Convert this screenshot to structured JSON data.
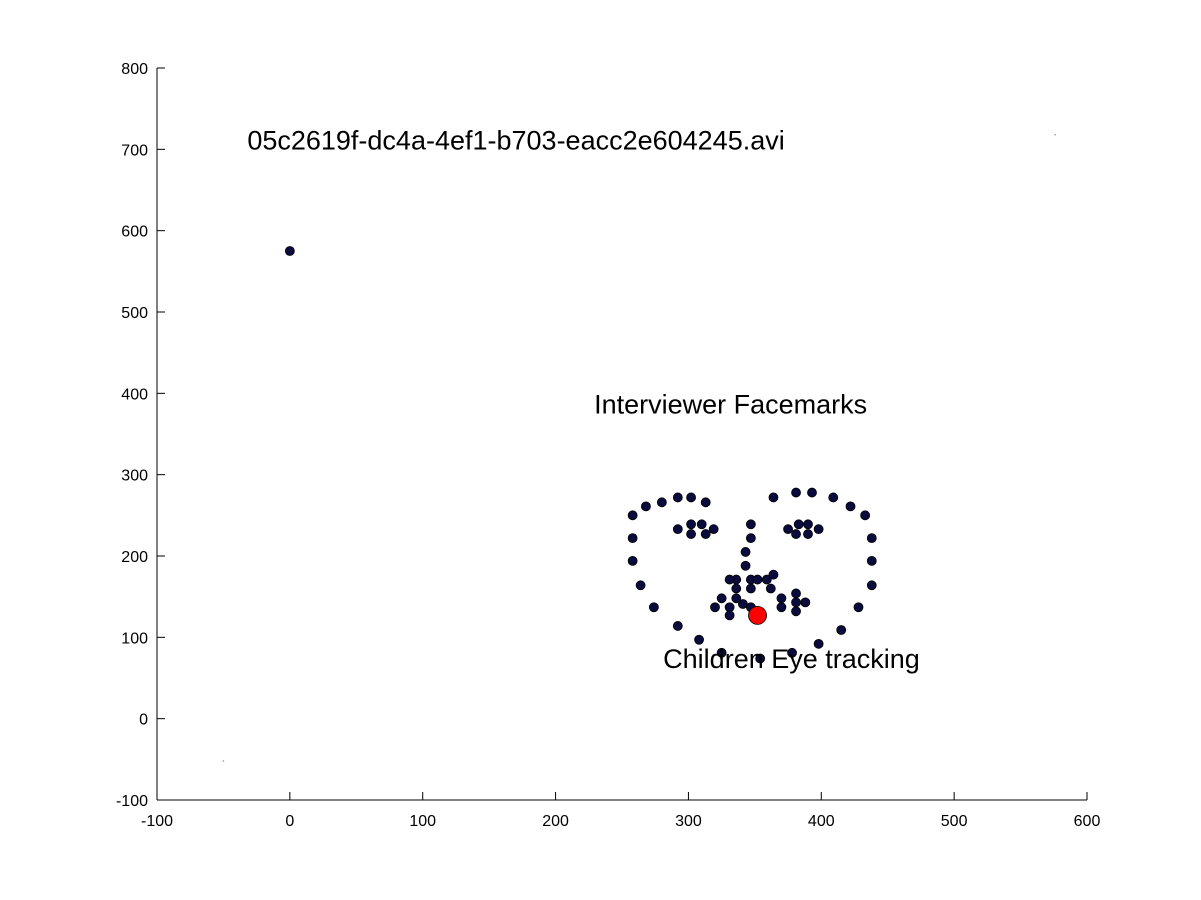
{
  "chart_data": {
    "type": "scatter",
    "xlim": [
      -100,
      600
    ],
    "ylim": [
      -100,
      800
    ],
    "xticks": [
      -100,
      0,
      100,
      200,
      300,
      400,
      500,
      600
    ],
    "yticks": [
      -100,
      0,
      100,
      200,
      300,
      400,
      500,
      600,
      700,
      800
    ],
    "xtick_labels": [
      "-100",
      "0",
      "100",
      "200",
      "300",
      "400",
      "500",
      "600"
    ],
    "ytick_labels": [
      "-100",
      "0",
      "100",
      "200",
      "300",
      "400",
      "500",
      "600",
      "700",
      "800"
    ],
    "grid": false,
    "box": "left-bottom axes only",
    "annotations": [
      {
        "text": "05c2619f-dc4a-4ef1-b703-eacc2e604245.avi",
        "x": -32,
        "y": 700
      },
      {
        "text": "Interviewer Facemarks",
        "x": 229,
        "y": 375
      },
      {
        "text": "Children Eye tracking",
        "x": 281,
        "y": 62
      }
    ],
    "series": [
      {
        "marker": "filled circle",
        "color": "#0a0a3c",
        "points": [
          [
            0,
            575
          ],
          [
            258,
            250
          ],
          [
            258,
            222
          ],
          [
            258,
            194
          ],
          [
            264,
            164
          ],
          [
            274,
            137
          ],
          [
            292,
            114
          ],
          [
            308,
            97
          ],
          [
            325,
            81
          ],
          [
            354,
            74
          ],
          [
            378,
            81
          ],
          [
            398,
            92
          ],
          [
            415,
            109
          ],
          [
            428,
            137
          ],
          [
            438,
            164
          ],
          [
            438,
            194
          ],
          [
            438,
            222
          ],
          [
            433,
            250
          ],
          [
            422,
            261
          ],
          [
            268,
            261
          ],
          [
            280,
            266
          ],
          [
            292,
            272
          ],
          [
            302,
            272
          ],
          [
            313,
            266
          ],
          [
            364,
            272
          ],
          [
            381,
            278
          ],
          [
            393,
            278
          ],
          [
            409,
            272
          ],
          [
            292,
            233
          ],
          [
            302,
            239
          ],
          [
            310,
            239
          ],
          [
            319,
            233
          ],
          [
            313,
            227
          ],
          [
            302,
            227
          ],
          [
            375,
            233
          ],
          [
            383,
            239
          ],
          [
            390,
            239
          ],
          [
            398,
            233
          ],
          [
            390,
            227
          ],
          [
            381,
            227
          ],
          [
            347,
            239
          ],
          [
            347,
            222
          ],
          [
            343,
            205
          ],
          [
            343,
            188
          ],
          [
            347,
            171
          ],
          [
            336,
            171
          ],
          [
            352,
            171
          ],
          [
            359,
            171
          ],
          [
            364,
            177
          ],
          [
            331,
            171
          ],
          [
            336,
            160
          ],
          [
            347,
            160
          ],
          [
            325,
            148
          ],
          [
            336,
            148
          ],
          [
            341,
            141
          ],
          [
            347,
            137
          ],
          [
            320,
            137
          ],
          [
            331,
            137
          ],
          [
            331,
            127
          ],
          [
            362,
            160
          ],
          [
            370,
            148
          ],
          [
            370,
            137
          ],
          [
            381,
            154
          ],
          [
            381,
            143
          ],
          [
            381,
            132
          ],
          [
            388,
            143
          ]
        ]
      },
      {
        "marker": "large filled circle",
        "color": "#ff0000",
        "points": [
          [
            352,
            127
          ]
        ]
      },
      {
        "marker": "point",
        "color": "#999999",
        "points": [
          [
            -50,
            -52
          ],
          [
            576,
            718
          ]
        ]
      }
    ]
  }
}
